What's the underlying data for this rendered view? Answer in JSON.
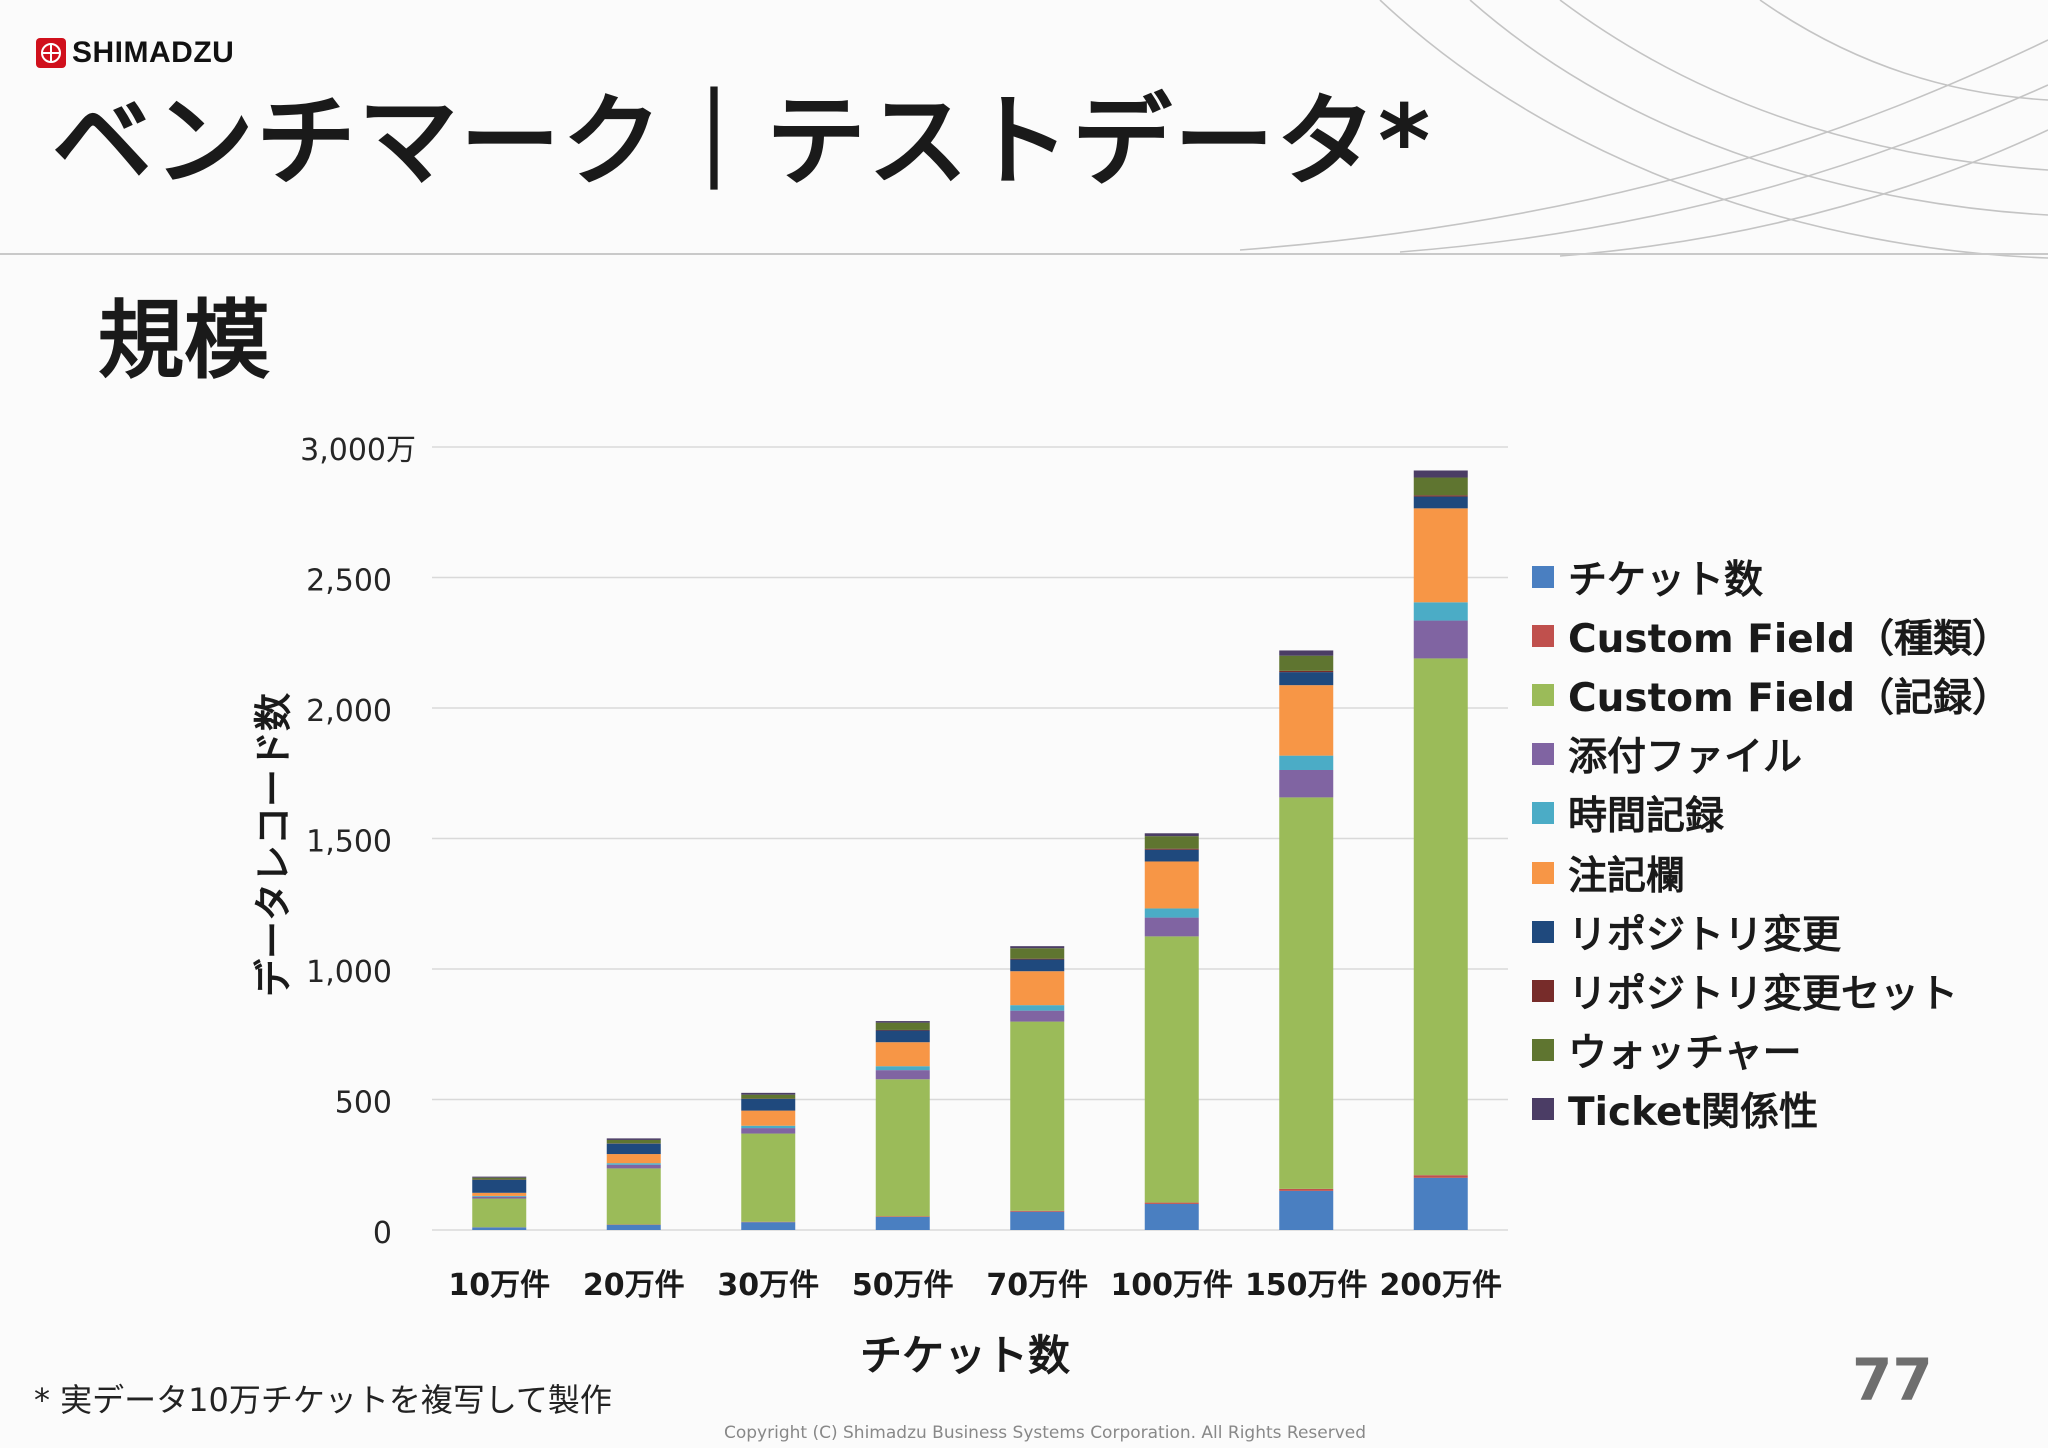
{
  "logo": {
    "text": "SHIMADZU"
  },
  "title": "ベンチマーク｜テストデータ*",
  "section_title": "規模",
  "chart_data": {
    "type": "bar",
    "stacked": true,
    "title": "",
    "xlabel": "チケット数",
    "ylabel": "データレコード数",
    "ylim": [
      0,
      3000
    ],
    "ytick_values": [
      0,
      500,
      1000,
      1500,
      2000,
      2500,
      3000
    ],
    "ytick_labels": [
      "0",
      "500",
      "1,000",
      "1,500",
      "2,000",
      "2,500",
      "3,000万"
    ],
    "categories": [
      "10万件",
      "20万件",
      "30万件",
      "50万件",
      "70万件",
      "100万件",
      "150万件",
      "200万件"
    ],
    "series": [
      {
        "name": "チケット数",
        "color": "#4a7fc1",
        "values": [
          10,
          20,
          30,
          50,
          70,
          100,
          150,
          200
        ]
      },
      {
        "name": "Custom Field（種類）",
        "color": "#c0504d",
        "values": [
          0.5,
          1,
          1.5,
          2.5,
          3.5,
          5,
          7.5,
          10
        ]
      },
      {
        "name": "Custom Field（記録）",
        "color": "#9bbb59",
        "values": [
          110,
          215,
          338,
          525,
          725,
          1020,
          1500,
          1980
        ]
      },
      {
        "name": "添付ファイル",
        "color": "#8064a2",
        "values": [
          7,
          14,
          21,
          35,
          42,
          72,
          105,
          145
        ]
      },
      {
        "name": "時間記録",
        "color": "#4bacc6",
        "values": [
          3,
          6,
          9,
          15,
          21,
          35,
          55,
          70
        ]
      },
      {
        "name": "注記欄",
        "color": "#f79646",
        "values": [
          12,
          35,
          58,
          92,
          130,
          180,
          270,
          360
        ]
      },
      {
        "name": "リポジトリ変更",
        "color": "#1f497d",
        "values": [
          50,
          40,
          45,
          45,
          45,
          45,
          50,
          45
        ]
      },
      {
        "name": "リポジトリ変更セット",
        "color": "#772c2a",
        "values": [
          1,
          1,
          1,
          2,
          3,
          4,
          5,
          5
        ]
      },
      {
        "name": "ウォッチャー",
        "color": "#5f7530",
        "values": [
          7,
          13,
          15,
          28,
          40,
          48,
          58,
          68
        ]
      },
      {
        "name": "Ticket関係性",
        "color": "#4b3d65",
        "values": [
          4,
          6,
          7,
          6,
          8,
          11,
          20,
          27
        ]
      }
    ]
  },
  "footnote": "* 実データ10万チケットを複写して製作",
  "page_number": "77",
  "copyright": "Copyright (C) Shimadzu Business Systems Corporation. All Rights Reserved"
}
